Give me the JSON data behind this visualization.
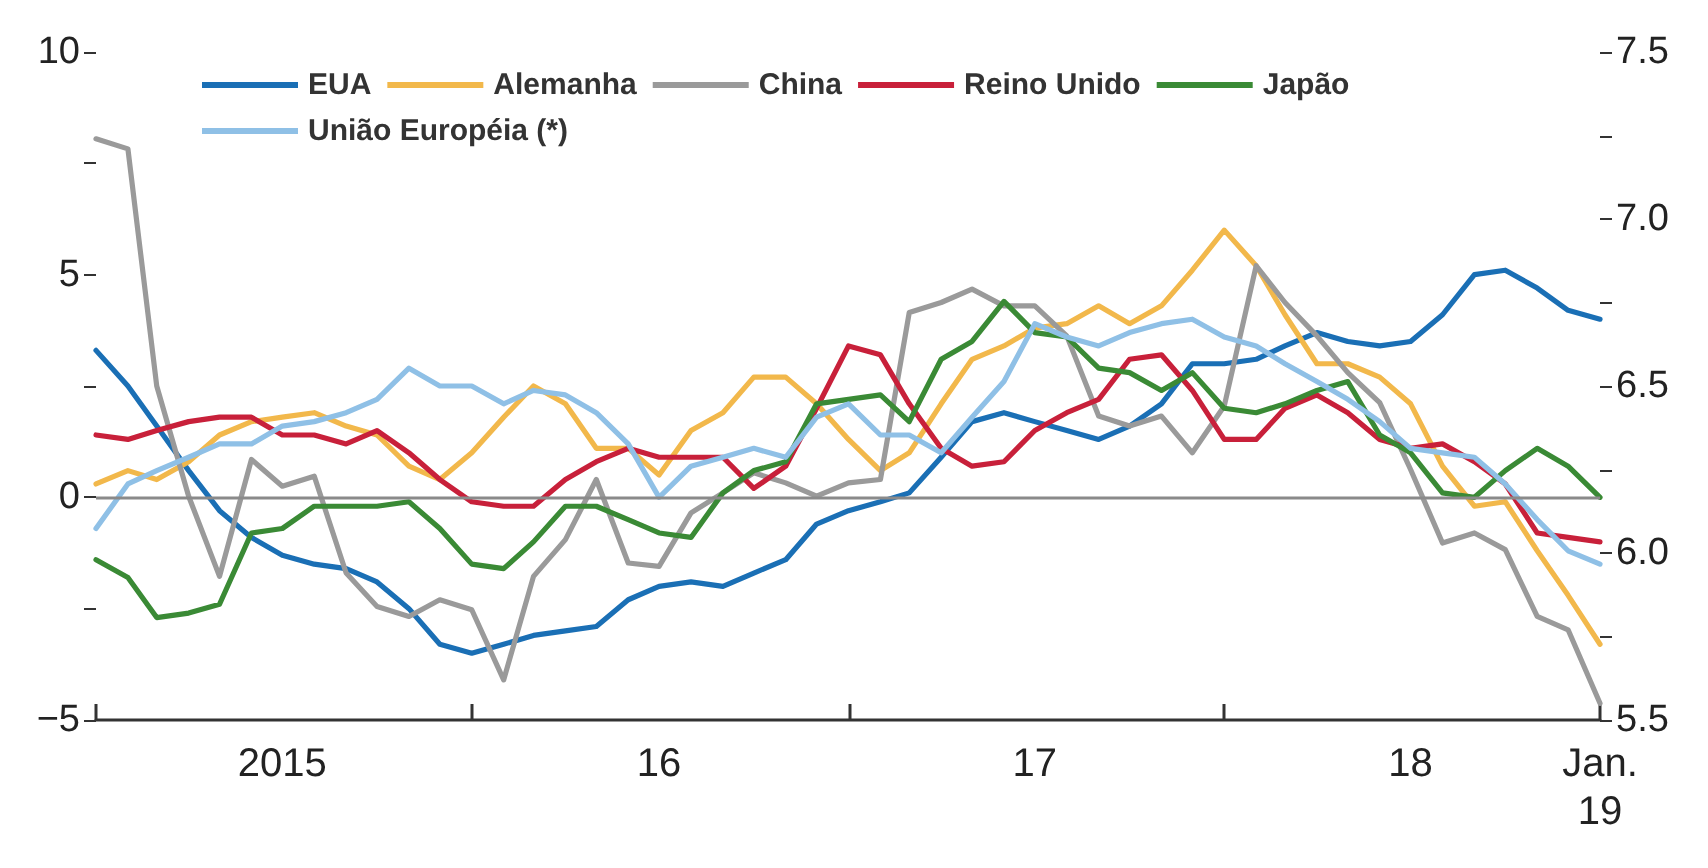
{
  "chart_data": {
    "type": "line",
    "x": [
      "2015-01",
      "2015-02",
      "2015-03",
      "2015-04",
      "2015-05",
      "2015-06",
      "2015-07",
      "2015-08",
      "2015-09",
      "2015-10",
      "2015-11",
      "2015-12",
      "2016-01",
      "2016-02",
      "2016-03",
      "2016-04",
      "2016-05",
      "2016-06",
      "2016-07",
      "2016-08",
      "2016-09",
      "2016-10",
      "2016-11",
      "2016-12",
      "2017-01",
      "2017-02",
      "2017-03",
      "2017-04",
      "2017-05",
      "2017-06",
      "2017-07",
      "2017-08",
      "2017-09",
      "2017-10",
      "2017-11",
      "2017-12",
      "2018-01",
      "2018-02",
      "2018-03",
      "2018-04",
      "2018-05",
      "2018-06",
      "2018-07",
      "2018-08",
      "2018-09",
      "2018-10",
      "2018-11",
      "2018-12",
      "2019-01"
    ],
    "series": [
      {
        "name": "EUA",
        "color": "#1a6fb5",
        "values": [
          3.3,
          2.5,
          1.6,
          0.6,
          -0.3,
          -0.9,
          -1.3,
          -1.5,
          -1.6,
          -1.9,
          -2.5,
          -3.3,
          -3.5,
          -3.3,
          -3.1,
          -3.0,
          -2.9,
          -2.3,
          -2.0,
          -1.9,
          -2.0,
          -1.7,
          -1.4,
          -0.6,
          -0.3,
          -0.1,
          0.1,
          0.9,
          1.7,
          1.9,
          1.7,
          1.5,
          1.3,
          1.6,
          2.1,
          3.0,
          3.0,
          3.1,
          3.4,
          3.7,
          3.5,
          3.4,
          3.5,
          4.1,
          5.0,
          5.1,
          4.7,
          4.2,
          4.0
        ]
      },
      {
        "name": "Alemanha",
        "color": "#f2b84b",
        "values": [
          0.3,
          0.6,
          0.4,
          0.8,
          1.4,
          1.7,
          1.8,
          1.9,
          1.6,
          1.4,
          0.7,
          0.4,
          1.0,
          1.8,
          2.5,
          2.1,
          1.1,
          1.1,
          0.5,
          1.5,
          1.9,
          2.7,
          2.7,
          2.1,
          1.3,
          0.6,
          1.0,
          2.1,
          3.1,
          3.4,
          3.8,
          3.9,
          4.3,
          3.9,
          4.3,
          5.1,
          6.0,
          5.2,
          4.1,
          3.0,
          3.0,
          2.7,
          2.1,
          0.7,
          -0.2,
          -0.1,
          -1.2,
          -2.2,
          -3.3
        ]
      },
      {
        "name": "China",
        "color": "#9a9a9a",
        "axis": "y2",
        "values": [
          7.24,
          7.21,
          6.5,
          6.17,
          5.93,
          6.28,
          6.2,
          6.23,
          5.94,
          5.84,
          5.81,
          5.86,
          5.83,
          5.62,
          5.93,
          6.04,
          6.22,
          5.97,
          5.96,
          6.12,
          6.18,
          6.24,
          6.21,
          6.17,
          6.21,
          6.22,
          6.72,
          6.75,
          6.79,
          6.74,
          6.74,
          6.65,
          6.41,
          6.38,
          6.41,
          6.3,
          6.44,
          6.86,
          6.75,
          6.65,
          6.54,
          6.45,
          6.25,
          6.03,
          6.06,
          6.01,
          5.81,
          5.77,
          5.55
        ]
      },
      {
        "name": "Reino Unido",
        "color": "#c8203a",
        "values": [
          1.4,
          1.3,
          1.5,
          1.7,
          1.8,
          1.8,
          1.4,
          1.4,
          1.2,
          1.5,
          1.0,
          0.4,
          -0.1,
          -0.2,
          -0.2,
          0.4,
          0.8,
          1.1,
          0.9,
          0.9,
          0.9,
          0.2,
          0.7,
          2.0,
          3.4,
          3.2,
          2.1,
          1.1,
          0.7,
          0.8,
          1.5,
          1.9,
          2.2,
          3.1,
          3.2,
          2.4,
          1.3,
          1.3,
          2.0,
          2.3,
          1.9,
          1.3,
          1.1,
          1.2,
          0.8,
          0.3,
          -0.8,
          -0.9,
          -1.0
        ]
      },
      {
        "name": "Japão",
        "color": "#3a8a35",
        "values": [
          -1.4,
          -1.8,
          -2.7,
          -2.6,
          -2.4,
          -0.8,
          -0.7,
          -0.2,
          -0.2,
          -0.2,
          -0.1,
          -0.7,
          -1.5,
          -1.6,
          -1.0,
          -0.2,
          -0.2,
          -0.5,
          -0.8,
          -0.9,
          0.1,
          0.6,
          0.8,
          2.1,
          2.2,
          2.3,
          1.7,
          3.1,
          3.5,
          4.4,
          3.7,
          3.6,
          2.9,
          2.8,
          2.4,
          2.8,
          2.0,
          1.9,
          2.1,
          2.4,
          2.6,
          1.4,
          1.0,
          0.1,
          0.0,
          0.6,
          1.1,
          0.7,
          0.0
        ]
      },
      {
        "name": "União Européia (*)",
        "color": "#8fc0e6",
        "values": [
          -0.7,
          0.3,
          0.6,
          0.9,
          1.2,
          1.2,
          1.6,
          1.7,
          1.9,
          2.2,
          2.9,
          2.5,
          2.5,
          2.1,
          2.4,
          2.3,
          1.9,
          1.2,
          0.0,
          0.7,
          0.9,
          1.1,
          0.9,
          1.8,
          2.1,
          1.4,
          1.4,
          1.0,
          1.8,
          2.6,
          3.9,
          3.6,
          3.4,
          3.7,
          3.9,
          4.0,
          3.6,
          3.4,
          3.0,
          2.6,
          2.2,
          1.7,
          1.1,
          1.0,
          0.9,
          0.3,
          -0.5,
          -1.2,
          -1.5
        ]
      }
    ],
    "xlim": [
      "2015-01",
      "2019-01"
    ],
    "xticks": [
      {
        "value": "2015-01",
        "label": null
      },
      {
        "value": "2015-07",
        "label": "2015"
      },
      {
        "value": "2016-01",
        "label": null
      },
      {
        "value": "2016-07",
        "label": "16"
      },
      {
        "value": "2017-01",
        "label": null
      },
      {
        "value": "2017-07",
        "label": "17"
      },
      {
        "value": "2018-01",
        "label": null
      },
      {
        "value": "2018-07",
        "label": "18"
      },
      {
        "value": "2019-01",
        "label": "Jan.\n19"
      }
    ],
    "ylim": [
      -5,
      10
    ],
    "yticks": [
      {
        "value": -5,
        "label": "−5"
      },
      {
        "value": -2.5,
        "label": null
      },
      0,
      {
        "value": 2.5,
        "label": null
      },
      5,
      {
        "value": 7.5,
        "label": null
      },
      10
    ],
    "y2lim": [
      5.5,
      7.5
    ],
    "y2ticks": [
      {
        "value": 5.5,
        "label": "5.5"
      },
      {
        "value": 5.75,
        "label": null
      },
      {
        "value": 6,
        "label": "6.0"
      },
      {
        "value": 6.25,
        "label": null
      },
      {
        "value": 6.5,
        "label": "6.5"
      },
      {
        "value": 6.75,
        "label": null
      },
      {
        "value": 7,
        "label": "7.0"
      },
      {
        "value": 7.25,
        "label": null
      },
      {
        "value": 7.5,
        "label": "7.5"
      }
    ],
    "ref_lines": [
      {
        "axis": "y",
        "value": 0,
        "color": "#8a8a8a"
      }
    ],
    "grid": false,
    "legend": "top",
    "marker": "none",
    "line_style": "solid"
  }
}
